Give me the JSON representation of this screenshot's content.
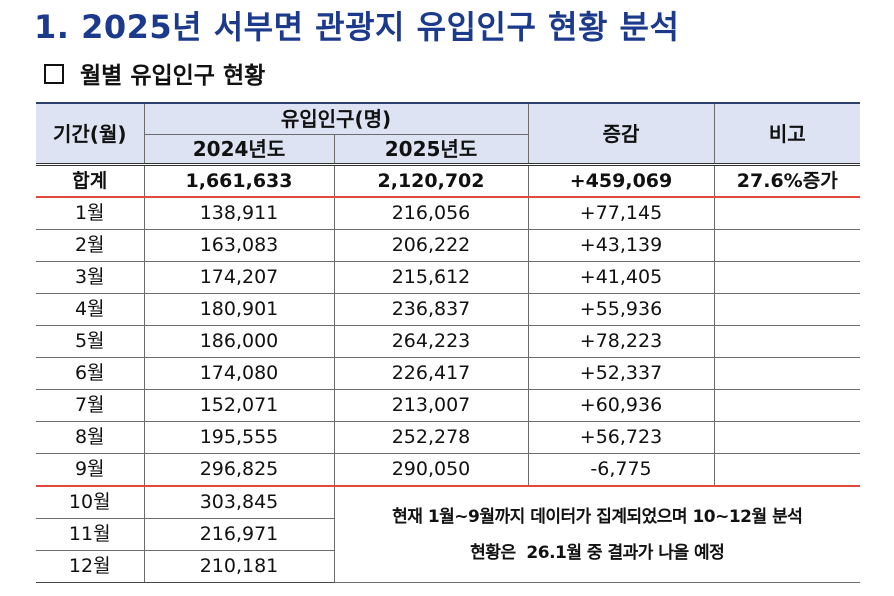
{
  "document": {
    "title": "1. 2025년 서부면 관광지 유입인구 현황 분석",
    "section_marker": "□",
    "section_title": "월별 유입인구 현황"
  },
  "table": {
    "headers": {
      "period": "기간(월)",
      "inflow": "유입인구(명)",
      "year_2024": "2024년도",
      "year_2025": "2025년도",
      "change": "증감",
      "remarks": "비고"
    },
    "total": {
      "label": "합계",
      "y2024": "1,661,633",
      "y2025": "2,120,702",
      "change": "+459,069",
      "remark": "27.6%증가"
    },
    "rows": [
      {
        "month": "1월",
        "y2024": "138,911",
        "y2025": "216,056",
        "change": "+77,145"
      },
      {
        "month": "2월",
        "y2024": "163,083",
        "y2025": "206,222",
        "change": "+43,139"
      },
      {
        "month": "3월",
        "y2024": "174,207",
        "y2025": "215,612",
        "change": "+41,405"
      },
      {
        "month": "4월",
        "y2024": "180,901",
        "y2025": "236,837",
        "change": "+55,936"
      },
      {
        "month": "5월",
        "y2024": "186,000",
        "y2025": "264,223",
        "change": "+78,223"
      },
      {
        "month": "6월",
        "y2024": "174,080",
        "y2025": "226,417",
        "change": "+52,337"
      },
      {
        "month": "7월",
        "y2024": "152,071",
        "y2025": "213,007",
        "change": "+60,936"
      },
      {
        "month": "8월",
        "y2024": "195,555",
        "y2025": "252,278",
        "change": "+56,723"
      },
      {
        "month": "9월",
        "y2024": "296,825",
        "y2025": "290,050",
        "change": "-6,775"
      }
    ],
    "pending_rows": [
      {
        "month": "10월",
        "y2024": "303,845"
      },
      {
        "month": "11월",
        "y2024": "216,971"
      },
      {
        "month": "12월",
        "y2024": "210,181"
      }
    ],
    "pending_note": {
      "line1": "현재 1월~9월까지 데이터가 집계되었으며 10~12월 분석",
      "line2": "현황은  26.1월 중 결과가 나올 예정"
    }
  },
  "colors": {
    "title": "#1c3a8c",
    "header_bg": "#dde3f2",
    "red_rule": "#e04a3c"
  }
}
